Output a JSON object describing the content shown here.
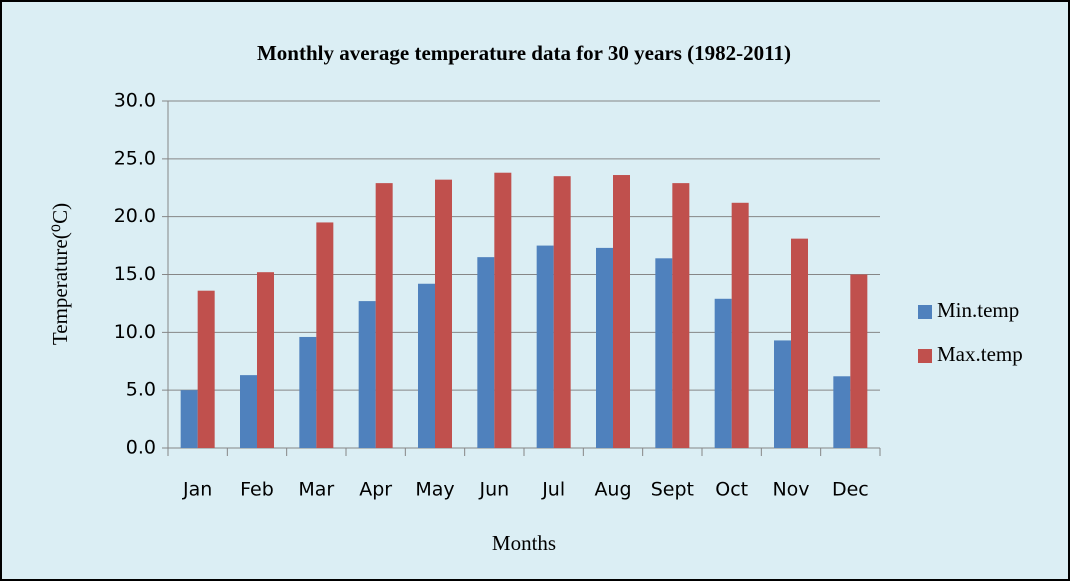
{
  "chart_data": {
    "type": "bar",
    "title": "Monthly average temperature data for 30 years (1982-2011)",
    "x_label": "Months",
    "y_label": "Temperature(⁰C)",
    "categories": [
      "Jan",
      "Feb",
      "Mar",
      "Apr",
      "May",
      "Jun",
      "Jul",
      "Aug",
      "Sept",
      "Oct",
      "Nov",
      "Dec"
    ],
    "series": [
      {
        "name": "Min.temp",
        "color": "#4f81bd",
        "values": [
          5.0,
          6.3,
          9.6,
          12.7,
          14.2,
          16.5,
          17.5,
          17.3,
          16.4,
          12.9,
          9.3,
          6.2
        ]
      },
      {
        "name": "Max.temp",
        "color": "#c0504d",
        "values": [
          13.6,
          15.2,
          19.5,
          22.9,
          23.2,
          23.8,
          23.5,
          23.6,
          22.9,
          21.2,
          18.1,
          15.0
        ]
      }
    ],
    "ylim": [
      0,
      30
    ],
    "yticks": [
      {
        "value": 0,
        "label": "0.0"
      },
      {
        "value": 5,
        "label": "5.0"
      },
      {
        "value": 10,
        "label": "10.0"
      },
      {
        "value": 15,
        "label": "15.0"
      },
      {
        "value": 20,
        "label": "20.0"
      },
      {
        "value": 25,
        "label": "25.0"
      },
      {
        "value": 30,
        "label": "30.0"
      }
    ],
    "grid": true,
    "legend": "right"
  }
}
